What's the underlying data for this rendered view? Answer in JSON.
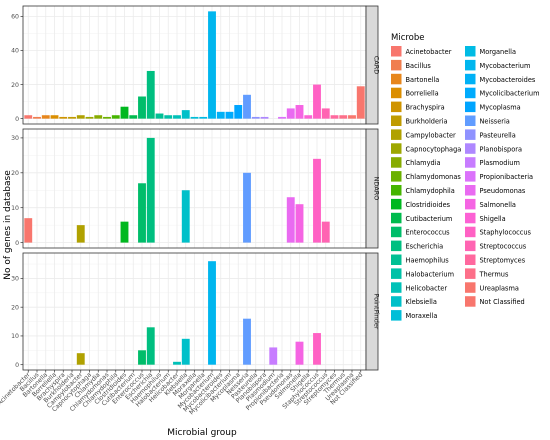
{
  "chart_data": {
    "type": "bar",
    "xlabel": "Microbial group",
    "ylabel": "No of genes in database",
    "legend_title": "Microbe",
    "legend_position": "right",
    "grid": true,
    "categories": [
      "Acinetobacter",
      "Bacillus",
      "Bartonella",
      "Borreliella",
      "Brachyspira",
      "Burkholderia",
      "Campylobacter",
      "Capnocytophaga",
      "Chlamydia",
      "Chlamydomonas",
      "Chlamydophila",
      "Clostridioides",
      "Cutibacterium",
      "Enterococcus",
      "Escherichia",
      "Haemophilus",
      "Halobacterium",
      "Helicobacter",
      "Klebsiella",
      "Moraxella",
      "Morganella",
      "Mycobacterium",
      "Mycobacteroides",
      "Mycolicibacterium",
      "Mycoplasma",
      "Neisseria",
      "Pasteurella",
      "Planobispora",
      "Plasmodium",
      "Propionibacteria",
      "Pseudomonas",
      "Salmonella",
      "Shigella",
      "Staphylococcus",
      "Streptococcus",
      "Streptomyces",
      "Thermus",
      "Ureaplasma",
      "Not Classified"
    ],
    "colors": [
      "#F8766D",
      "#F07E4F",
      "#E7861B",
      "#DB8E00",
      "#CF9400",
      "#C09B00",
      "#B0A100",
      "#9DA700",
      "#87AC00",
      "#6BB100",
      "#45B500",
      "#00B81F",
      "#00BB4E",
      "#00BD6A",
      "#00BF80",
      "#00C094",
      "#00C1A7",
      "#00C1B8",
      "#00C0C9",
      "#00BED8",
      "#00BBE4",
      "#00B6EE",
      "#00B1F6",
      "#00ABFD",
      "#00A5FF",
      "#619CFF",
      "#8F92FF",
      "#AE87FF",
      "#C77CFF",
      "#DB72FB",
      "#E96AF1",
      "#F564E3",
      "#FC61D4",
      "#FF61C4",
      "#FF64B2",
      "#FF689E",
      "#FD6F89",
      "#F8766D",
      "#F8766D"
    ],
    "panels": [
      {
        "name": "CARD",
        "ylim": [
          0,
          63
        ],
        "yticks": [
          0,
          20,
          40,
          60
        ],
        "values": [
          2,
          1,
          2,
          2,
          1,
          1,
          2,
          1,
          2,
          1,
          2,
          7,
          2,
          13,
          28,
          3,
          2,
          2,
          5,
          1,
          1,
          63,
          4,
          4,
          8,
          14,
          1,
          1,
          0,
          1,
          6,
          8,
          2,
          20,
          6,
          2,
          2,
          2,
          19
        ]
      },
      {
        "name": "NDARO",
        "ylim": [
          0,
          31
        ],
        "yticks": [
          0,
          10,
          20,
          30
        ],
        "values": [
          7,
          0,
          0,
          0,
          0,
          0,
          5,
          0,
          0,
          0,
          0,
          6,
          0,
          17,
          30,
          0,
          0,
          0,
          15,
          0,
          0,
          0,
          0,
          0,
          0,
          20,
          0,
          0,
          0,
          0,
          13,
          11,
          0,
          24,
          6,
          0,
          0,
          0,
          0
        ]
      },
      {
        "name": "PointFinder",
        "ylim": [
          0,
          37
        ],
        "yticks": [
          0,
          10,
          20,
          30
        ],
        "values": [
          0,
          0,
          0,
          0,
          0,
          0,
          4,
          0,
          0,
          0,
          0,
          0,
          0,
          5,
          13,
          0,
          0,
          1,
          9,
          0,
          0,
          36,
          0,
          0,
          0,
          16,
          0,
          0,
          6,
          0,
          0,
          8,
          0,
          11,
          0,
          0,
          0,
          0,
          0
        ]
      }
    ]
  }
}
